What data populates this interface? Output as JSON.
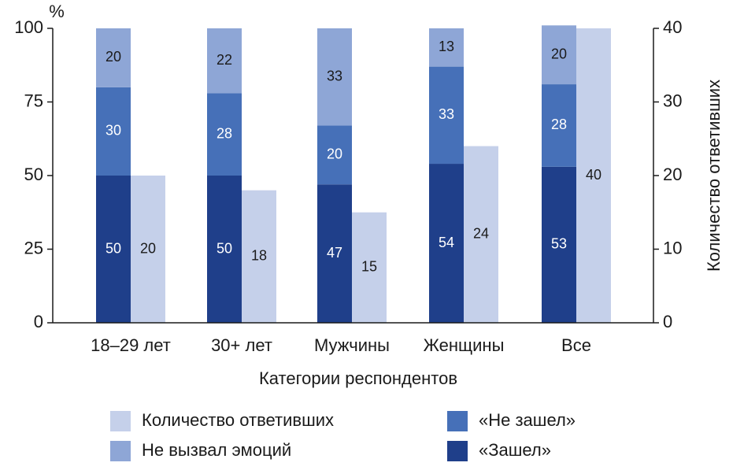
{
  "chart_data": {
    "type": "bar",
    "categories": [
      "18–29 лет",
      "30+ лет",
      "Мужчины",
      "Женщины",
      "Все"
    ],
    "x_label": "Категории респондентов",
    "y_label": "%",
    "y2_label": "Количество ответивших",
    "ylim": [
      0,
      100
    ],
    "yticks": [
      0,
      25,
      50,
      75,
      100
    ],
    "y2lim": [
      0,
      40
    ],
    "y2ticks": [
      0,
      10,
      20,
      30,
      40
    ],
    "stacked": true,
    "series": [
      {
        "name": "Количество ответивших",
        "color": "#c5d0ea",
        "axis": "y2",
        "values": [
          20,
          18,
          15,
          24,
          40
        ]
      },
      {
        "name": "Не вызвал эмоций",
        "color": "#8ea6d6",
        "values": [
          20,
          22,
          33,
          13,
          20
        ]
      },
      {
        "name": "«Не зашел»",
        "color": "#4670b8",
        "values": [
          30,
          28,
          20,
          33,
          28
        ]
      },
      {
        "name": "«Зашел»",
        "color": "#1f3f8a",
        "values": [
          50,
          50,
          47,
          54,
          53
        ]
      }
    ]
  }
}
